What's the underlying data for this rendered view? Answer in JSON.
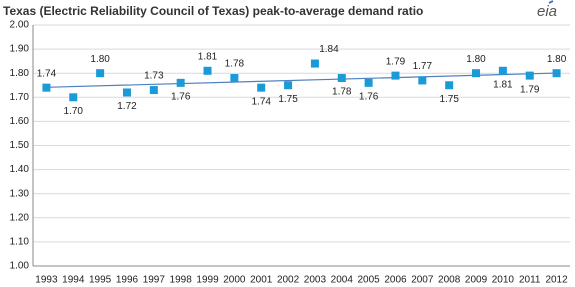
{
  "chart_data": {
    "type": "scatter",
    "title": "Texas (Electric Reliability Council of Texas) peak-to-average  demand ratio",
    "logo_text": "eia",
    "categories": [
      "1993",
      "1994",
      "1995",
      "1996",
      "1997",
      "1998",
      "1999",
      "2000",
      "2001",
      "2002",
      "2003",
      "2004",
      "2005",
      "2006",
      "2007",
      "2008",
      "2009",
      "2010",
      "2011",
      "2012"
    ],
    "series": [
      {
        "color": "#1a9ad6",
        "trendline_color": "#4f81bd",
        "values": [
          1.74,
          1.7,
          1.8,
          1.72,
          1.73,
          1.76,
          1.81,
          1.78,
          1.74,
          1.75,
          1.84,
          1.78,
          1.76,
          1.79,
          1.77,
          1.75,
          1.8,
          1.81,
          1.79,
          1.8
        ],
        "value_labels": [
          "1.74",
          "1.70",
          "1.80",
          "1.72",
          "1.73",
          "1.76",
          "1.81",
          "1.78",
          "1.74",
          "1.75",
          "1.84",
          "1.78",
          "1.76",
          "1.79",
          "1.77",
          "1.75",
          "1.80",
          "1.81",
          "1.79",
          "1.80"
        ]
      }
    ],
    "trendline": true,
    "ylim": [
      1.0,
      2.0
    ],
    "yticks": [
      {
        "value": 1.0,
        "label": "1.00"
      },
      {
        "value": 1.1,
        "label": "1.10"
      },
      {
        "value": 1.2,
        "label": "1.20"
      },
      {
        "value": 1.3,
        "label": "1.30"
      },
      {
        "value": 1.4,
        "label": "1.40"
      },
      {
        "value": 1.5,
        "label": "1.50"
      },
      {
        "value": 1.6,
        "label": "1.60"
      },
      {
        "value": 1.7,
        "label": "1.70"
      },
      {
        "value": 1.8,
        "label": "1.80"
      },
      {
        "value": 1.9,
        "label": "1.90"
      },
      {
        "value": 2.0,
        "label": "2.00"
      }
    ],
    "grid": true
  }
}
